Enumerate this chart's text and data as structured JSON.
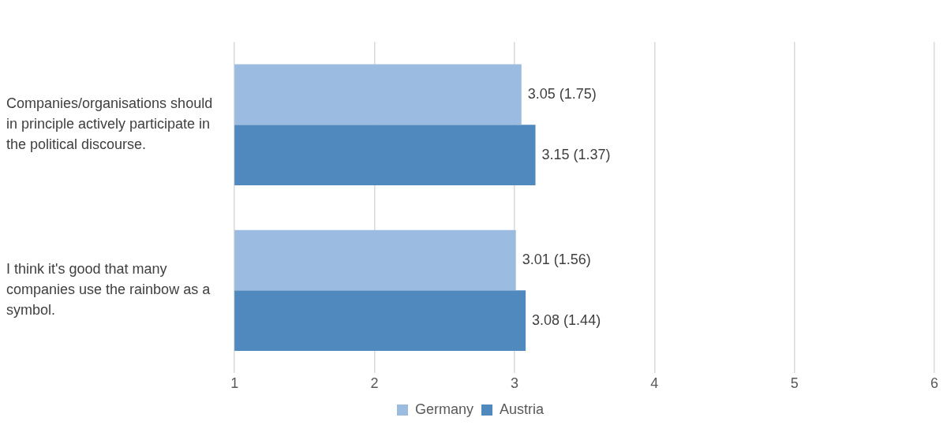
{
  "chart_data": {
    "type": "bar",
    "orientation": "horizontal",
    "categories": [
      "Companies/organisations should in principle actively participate in the political discourse.",
      "I think it's good that many companies use the rainbow as a symbol."
    ],
    "series": [
      {
        "name": "Germany",
        "color": "#9bbbe0",
        "values": [
          3.05,
          3.01
        ],
        "value_labels": [
          "3.05 (1.75)",
          "3.01 (1.56)"
        ]
      },
      {
        "name": "Austria",
        "color": "#4f89bd",
        "values": [
          3.15,
          3.08
        ],
        "value_labels": [
          "3.15 (1.37)",
          "3.08 (1.44)"
        ]
      }
    ],
    "xlim": [
      1,
      6
    ],
    "xticks": [
      1,
      2,
      3,
      4,
      5,
      6
    ],
    "grid": "x",
    "legend": "bottom"
  }
}
